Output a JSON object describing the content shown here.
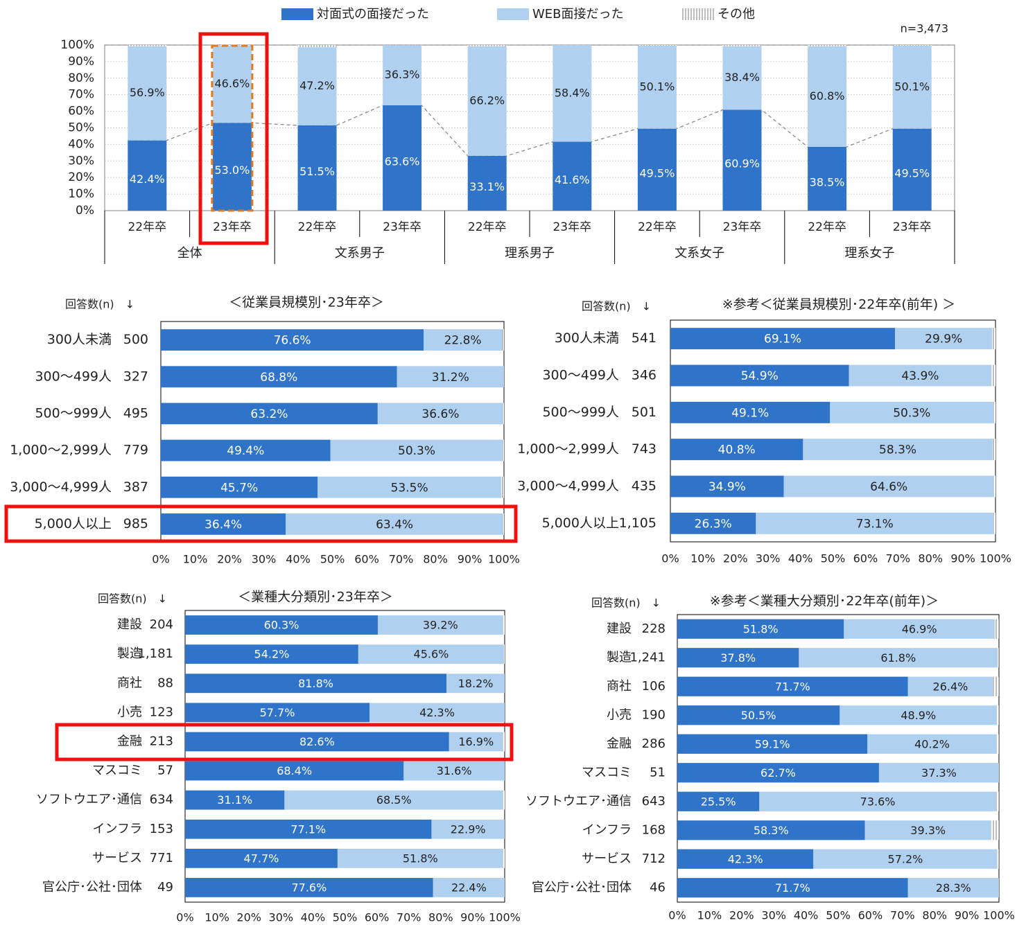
{
  "colors": {
    "face": "#2f74c8",
    "web": "#b0d0f0",
    "other": "#c8c8c8",
    "highlight": "#ee1111",
    "dash": "#e07a20"
  },
  "legend": {
    "face": "対面式の面接だった",
    "web": "WEB面接だった",
    "other": "その他"
  },
  "chart_data": [
    {
      "type": "bar",
      "stacked": true,
      "orientation": "vertical",
      "note": "n=3,473",
      "y_ticks": [
        "100%",
        "90%",
        "80%",
        "70%",
        "60%",
        "50%",
        "40%",
        "30%",
        "20%",
        "10%",
        "0%"
      ],
      "ylim": [
        0,
        100
      ],
      "grid": true,
      "legend_position": "top",
      "groups": [
        "全体",
        "文系男子",
        "理系男子",
        "文系女子",
        "理系女子"
      ],
      "categories": [
        "22年卒",
        "23年卒",
        "22年卒",
        "23年卒",
        "22年卒",
        "23年卒",
        "22年卒",
        "23年卒",
        "22年卒",
        "23年卒"
      ],
      "series": [
        {
          "name": "対面式の面接だった",
          "values": [
            42.4,
            53.0,
            51.5,
            63.6,
            33.1,
            41.6,
            49.5,
            60.9,
            38.5,
            49.5
          ],
          "labels": [
            "42.4%",
            "53.0%",
            "51.5%",
            "63.6%",
            "33.1%",
            "41.6%",
            "49.5%",
            "60.9%",
            "38.5%",
            "49.5%"
          ]
        },
        {
          "name": "WEB面接だった",
          "values": [
            56.9,
            46.6,
            47.2,
            36.3,
            66.2,
            58.4,
            50.1,
            38.4,
            60.8,
            50.1
          ],
          "labels": [
            "56.9%",
            "46.6%",
            "47.2%",
            "36.3%",
            "66.2%",
            "58.4%",
            "50.1%",
            "38.4%",
            "60.8%",
            "50.1%"
          ]
        }
      ]
    },
    {
      "type": "bar",
      "stacked": true,
      "orientation": "horizontal",
      "title": "＜従業員規模別･23年卒＞",
      "n_header": "回答数(n)　↓",
      "x_ticks": [
        "0%",
        "10%",
        "20%",
        "30%",
        "40%",
        "50%",
        "60%",
        "70%",
        "80%",
        "90%",
        "100%"
      ],
      "xlim": [
        0,
        100
      ],
      "categories": [
        "300人未満",
        "300～499人",
        "500～999人",
        "1,000～2,999人",
        "3,000～4,999人",
        "5,000人以上"
      ],
      "n": [
        "500",
        "327",
        "495",
        "779",
        "387",
        "985"
      ],
      "series": [
        {
          "name": "対面式の面接だった",
          "values": [
            76.6,
            68.8,
            63.2,
            49.4,
            45.7,
            36.4
          ],
          "labels": [
            "76.6%",
            "68.8%",
            "63.2%",
            "49.4%",
            "45.7%",
            "36.4%"
          ]
        },
        {
          "name": "WEB面接だった",
          "values": [
            22.8,
            31.2,
            36.6,
            50.3,
            53.5,
            63.4
          ],
          "labels": [
            "22.8%",
            "31.2%",
            "36.6%",
            "50.3%",
            "53.5%",
            "63.4%"
          ]
        }
      ]
    },
    {
      "type": "bar",
      "stacked": true,
      "orientation": "horizontal",
      "title": "※参考＜従業員規模別･22年卒(前年) ＞",
      "n_header": "回答数(n)　↓",
      "x_ticks": [
        "0%",
        "10%",
        "20%",
        "30%",
        "40%",
        "50%",
        "60%",
        "70%",
        "80%",
        "90%",
        "100%"
      ],
      "xlim": [
        0,
        100
      ],
      "categories": [
        "300人未満",
        "300～499人",
        "500～999人",
        "1,000～2,999人",
        "3,000～4,999人",
        "5,000人以上"
      ],
      "n": [
        "541",
        "346",
        "501",
        "743",
        "435",
        "1,105"
      ],
      "series": [
        {
          "name": "対面式の面接だった",
          "values": [
            69.1,
            54.9,
            49.1,
            40.8,
            34.9,
            26.3
          ],
          "labels": [
            "69.1%",
            "54.9%",
            "49.1%",
            "40.8%",
            "34.9%",
            "26.3%"
          ]
        },
        {
          "name": "WEB面接だった",
          "values": [
            29.9,
            43.9,
            50.3,
            58.3,
            64.6,
            73.1
          ],
          "labels": [
            "29.9%",
            "43.9%",
            "50.3%",
            "58.3%",
            "64.6%",
            "73.1%"
          ]
        }
      ]
    },
    {
      "type": "bar",
      "stacked": true,
      "orientation": "horizontal",
      "title": "＜業種大分類別･23年卒＞",
      "n_header": "回答数(n)　↓",
      "x_ticks": [
        "0%",
        "10%",
        "20%",
        "30%",
        "40%",
        "50%",
        "60%",
        "70%",
        "80%",
        "90%",
        "100%"
      ],
      "xlim": [
        0,
        100
      ],
      "categories": [
        "建設",
        "製造",
        "商社",
        "小売",
        "金融",
        "マスコミ",
        "ソフトウエア･通信",
        "インフラ",
        "サービス",
        "官公庁･公社･団体"
      ],
      "n": [
        "204",
        "1,181",
        "88",
        "123",
        "213",
        "57",
        "634",
        "153",
        "771",
        "49"
      ],
      "series": [
        {
          "name": "対面式の面接だった",
          "values": [
            60.3,
            54.2,
            81.8,
            57.7,
            82.6,
            68.4,
            31.1,
            77.1,
            47.7,
            77.6
          ],
          "labels": [
            "60.3%",
            "54.2%",
            "81.8%",
            "57.7%",
            "82.6%",
            "68.4%",
            "31.1%",
            "77.1%",
            "47.7%",
            "77.6%"
          ]
        },
        {
          "name": "WEB面接だった",
          "values": [
            39.2,
            45.6,
            18.2,
            42.3,
            16.9,
            31.6,
            68.5,
            22.9,
            51.8,
            22.4
          ],
          "labels": [
            "39.2%",
            "45.6%",
            "18.2%",
            "42.3%",
            "16.9%",
            "31.6%",
            "68.5%",
            "22.9%",
            "51.8%",
            "22.4%"
          ]
        }
      ]
    },
    {
      "type": "bar",
      "stacked": true,
      "orientation": "horizontal",
      "title": "※参考＜業種大分類別･22年卒(前年)＞",
      "n_header": "回答数(n)　↓",
      "x_ticks": [
        "0%",
        "10%",
        "20%",
        "30%",
        "40%",
        "50%",
        "60%",
        "70%",
        "80%",
        "90%",
        "100%"
      ],
      "xlim": [
        0,
        100
      ],
      "categories": [
        "建設",
        "製造",
        "商社",
        "小売",
        "金融",
        "マスコミ",
        "ソフトウエア･通信",
        "インフラ",
        "サービス",
        "官公庁･公社･団体"
      ],
      "n": [
        "228",
        "1,241",
        "106",
        "190",
        "286",
        "51",
        "643",
        "168",
        "712",
        "46"
      ],
      "series": [
        {
          "name": "対面式の面接だった",
          "values": [
            51.8,
            37.8,
            71.7,
            50.5,
            59.1,
            62.7,
            25.5,
            58.3,
            42.3,
            71.7
          ],
          "labels": [
            "51.8%",
            "37.8%",
            "71.7%",
            "50.5%",
            "59.1%",
            "62.7%",
            "25.5%",
            "58.3%",
            "42.3%",
            "71.7%"
          ]
        },
        {
          "name": "WEB面接だった",
          "values": [
            46.9,
            61.8,
            26.4,
            48.9,
            40.2,
            37.3,
            73.6,
            39.3,
            57.2,
            28.3
          ],
          "labels": [
            "46.9%",
            "61.8%",
            "26.4%",
            "48.9%",
            "40.2%",
            "37.3%",
            "73.6%",
            "39.3%",
            "57.2%",
            "28.3%"
          ]
        }
      ]
    }
  ]
}
